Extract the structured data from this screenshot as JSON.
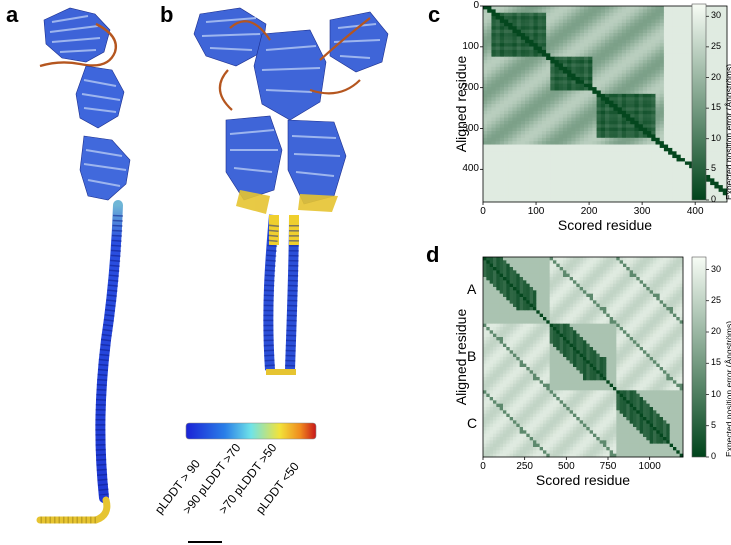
{
  "panels": {
    "a": "a",
    "b": "b",
    "c": "c",
    "d": "d"
  },
  "plddt_legend": {
    "labels": [
      "pLDDT > 90",
      ">90 pLDDT >70",
      ">70 pLDDT >50",
      "pLDDT <50"
    ],
    "colors": [
      "#1a3fd6",
      "#45a7e8",
      "#f2e33a",
      "#d1401a"
    ]
  },
  "chart_data": [
    {
      "type": "heatmap",
      "panel": "c",
      "xlabel": "Scored residue",
      "ylabel": "Aligned residue",
      "xticks": [
        0,
        100,
        200,
        300,
        400
      ],
      "yticks": [
        0,
        100,
        200,
        300,
        400
      ],
      "xlim": [
        0,
        460
      ],
      "ylim": [
        0,
        480
      ],
      "colorbar": {
        "label": "Expected position error (Ångströms)",
        "ticks": [
          0,
          5,
          10,
          15,
          20,
          25,
          30
        ],
        "range": [
          0,
          32
        ]
      },
      "low_error_blocks": [
        [
          15,
          120
        ],
        [
          125,
          205
        ],
        [
          215,
          325
        ]
      ]
    },
    {
      "type": "heatmap",
      "panel": "d",
      "xlabel": "Scored residue",
      "ylabel": "Aligned residue",
      "xticks": [
        0,
        250,
        500,
        750,
        1000
      ],
      "xlim": [
        0,
        1200
      ],
      "ylim": [
        0,
        1200
      ],
      "chain_labels": [
        "A",
        "B",
        "C"
      ],
      "colorbar": {
        "label": "Expected position error (Ångströms)",
        "ticks": [
          0,
          5,
          10,
          15,
          20,
          25,
          30
        ],
        "range": [
          0,
          32
        ]
      },
      "chain_length": 400
    }
  ]
}
